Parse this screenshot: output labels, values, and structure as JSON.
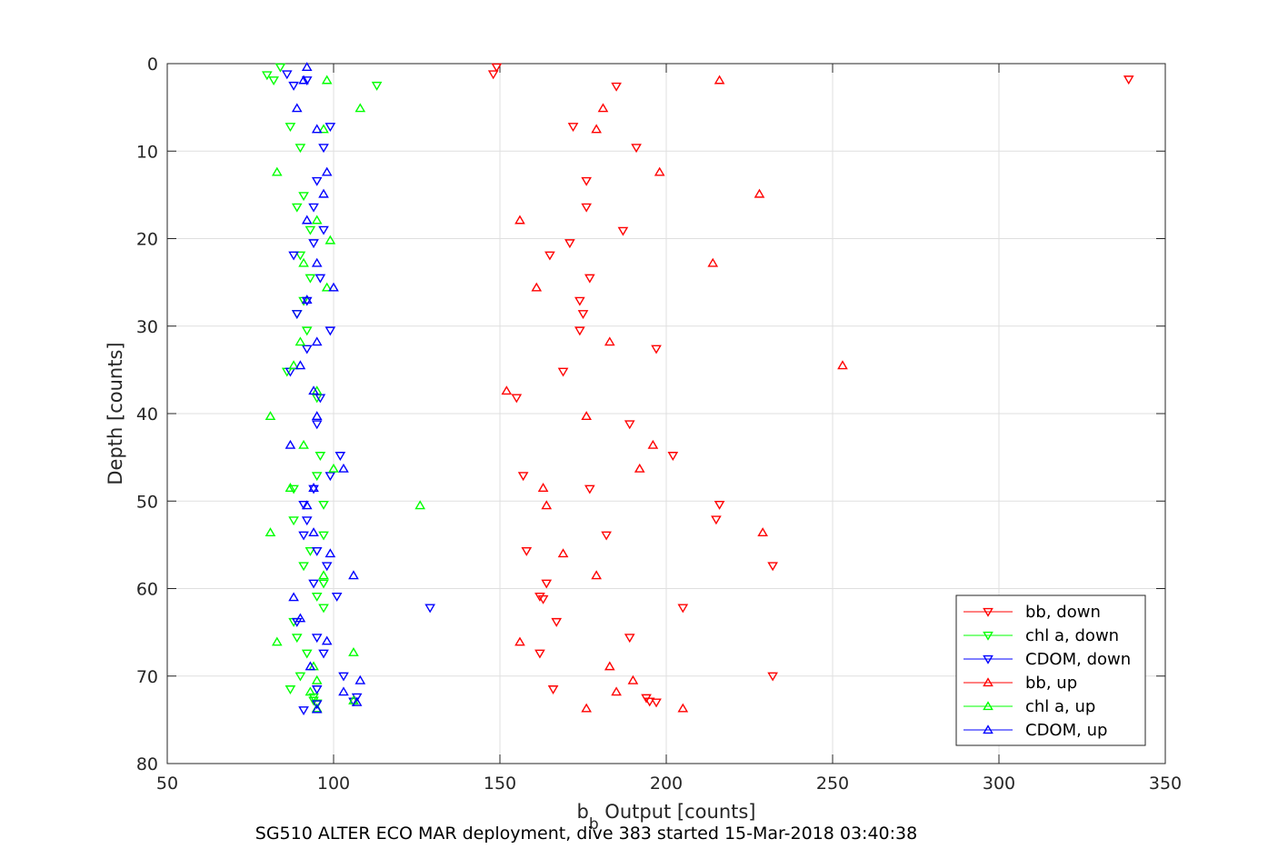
{
  "chart_data": {
    "type": "scatter",
    "title": "",
    "caption": "SG510 ALTER ECO MAR deployment, dive 383 started 15-Mar-2018 03:40:38",
    "xlabel_main": "b",
    "xlabel_sub": "b",
    "xlabel_rest": " Output [counts]",
    "ylabel": "Depth [counts]",
    "xlim": [
      50,
      350
    ],
    "ylim": [
      0,
      80
    ],
    "y_reversed": true,
    "grid": true,
    "legend_position": "bottom-right",
    "xticks": [
      "50",
      "100",
      "150",
      "200",
      "250",
      "300",
      "350"
    ],
    "yticks": [
      "0",
      "10",
      "20",
      "30",
      "40",
      "50",
      "60",
      "70",
      "80"
    ],
    "series": [
      {
        "name": "bb, down",
        "color": "#ff0000",
        "marker": "triangle-down",
        "points": [
          [
            149,
            0.4
          ],
          [
            148,
            1.2
          ],
          [
            339,
            1.8
          ],
          [
            185,
            2.6
          ],
          [
            172,
            7.2
          ],
          [
            191,
            9.6
          ],
          [
            176,
            13.4
          ],
          [
            176,
            16.4
          ],
          [
            187,
            19.1
          ],
          [
            171,
            20.5
          ],
          [
            165,
            21.9
          ],
          [
            177,
            24.5
          ],
          [
            174,
            27.1
          ],
          [
            175,
            28.6
          ],
          [
            174,
            30.5
          ],
          [
            197,
            32.6
          ],
          [
            169,
            35.2
          ],
          [
            155,
            38.2
          ],
          [
            189,
            41.2
          ],
          [
            202,
            44.8
          ],
          [
            157,
            47.1
          ],
          [
            177,
            48.6
          ],
          [
            216,
            50.4
          ],
          [
            215,
            52.1
          ],
          [
            182,
            53.9
          ],
          [
            158,
            55.7
          ],
          [
            232,
            57.4
          ],
          [
            164,
            59.4
          ],
          [
            162,
            60.9
          ],
          [
            163,
            61.2
          ],
          [
            205,
            62.2
          ],
          [
            167,
            63.8
          ],
          [
            189,
            65.6
          ],
          [
            162,
            67.4
          ],
          [
            232,
            70.0
          ],
          [
            166,
            71.5
          ],
          [
            194,
            72.5
          ],
          [
            195,
            72.9
          ],
          [
            197,
            73.0
          ]
        ]
      },
      {
        "name": "chl a, down",
        "color": "#00ff00",
        "marker": "triangle-down",
        "points": [
          [
            84,
            0.4
          ],
          [
            80,
            1.3
          ],
          [
            82,
            1.9
          ],
          [
            113,
            2.5
          ],
          [
            87,
            7.2
          ],
          [
            90,
            9.6
          ],
          [
            91,
            15.1
          ],
          [
            89,
            16.4
          ],
          [
            93,
            19.0
          ],
          [
            90,
            21.9
          ],
          [
            93,
            24.5
          ],
          [
            91,
            27.1
          ],
          [
            89,
            28.6
          ],
          [
            92,
            30.5
          ],
          [
            86,
            35.2
          ],
          [
            95,
            38.2
          ],
          [
            96,
            44.8
          ],
          [
            95,
            47.1
          ],
          [
            88,
            48.6
          ],
          [
            97,
            50.4
          ],
          [
            88,
            52.2
          ],
          [
            97,
            53.9
          ],
          [
            93,
            55.7
          ],
          [
            91,
            57.4
          ],
          [
            97,
            59.4
          ],
          [
            95,
            60.9
          ],
          [
            97,
            62.2
          ],
          [
            88,
            63.8
          ],
          [
            89,
            65.6
          ],
          [
            92,
            67.4
          ],
          [
            90,
            70.0
          ],
          [
            87,
            71.5
          ],
          [
            94,
            72.4
          ],
          [
            94,
            72.8
          ],
          [
            95,
            73.1
          ]
        ]
      },
      {
        "name": "CDOM, down",
        "color": "#0000ff",
        "marker": "triangle-down",
        "points": [
          [
            86,
            1.2
          ],
          [
            92,
            1.9
          ],
          [
            88,
            2.5
          ],
          [
            99,
            7.2
          ],
          [
            97,
            9.6
          ],
          [
            95,
            13.4
          ],
          [
            94,
            16.4
          ],
          [
            97,
            19.0
          ],
          [
            94,
            20.5
          ],
          [
            88,
            21.9
          ],
          [
            96,
            24.5
          ],
          [
            92,
            27.1
          ],
          [
            89,
            28.6
          ],
          [
            99,
            30.5
          ],
          [
            92,
            32.6
          ],
          [
            87,
            35.2
          ],
          [
            96,
            38.2
          ],
          [
            95,
            41.2
          ],
          [
            102,
            44.8
          ],
          [
            99,
            47.1
          ],
          [
            94,
            48.6
          ],
          [
            91,
            50.4
          ],
          [
            92,
            52.2
          ],
          [
            91,
            53.9
          ],
          [
            95,
            55.7
          ],
          [
            98,
            57.4
          ],
          [
            94,
            59.4
          ],
          [
            101,
            60.9
          ],
          [
            129,
            62.2
          ],
          [
            89,
            63.8
          ],
          [
            95,
            65.6
          ],
          [
            97,
            67.4
          ],
          [
            103,
            70.0
          ],
          [
            95,
            71.5
          ],
          [
            107,
            72.4
          ],
          [
            106,
            72.9
          ],
          [
            95,
            73.2
          ],
          [
            91,
            73.9
          ]
        ]
      },
      {
        "name": "bb, up",
        "color": "#ff0000",
        "marker": "triangle-up",
        "points": [
          [
            216,
            1.9
          ],
          [
            181,
            5.1
          ],
          [
            179,
            7.5
          ],
          [
            198,
            12.4
          ],
          [
            228,
            14.9
          ],
          [
            156,
            17.9
          ],
          [
            214,
            22.8
          ],
          [
            161,
            25.6
          ],
          [
            183,
            31.8
          ],
          [
            253,
            34.5
          ],
          [
            152,
            37.4
          ],
          [
            176,
            40.3
          ],
          [
            196,
            43.6
          ],
          [
            192,
            46.3
          ],
          [
            163,
            48.5
          ],
          [
            164,
            50.5
          ],
          [
            229,
            53.6
          ],
          [
            169,
            56.0
          ],
          [
            179,
            58.5
          ],
          [
            156,
            66.1
          ],
          [
            183,
            68.9
          ],
          [
            190,
            70.5
          ],
          [
            185,
            71.8
          ],
          [
            205,
            73.7
          ],
          [
            176,
            73.7
          ]
        ]
      },
      {
        "name": "chl a, up",
        "color": "#00ff00",
        "marker": "triangle-up",
        "points": [
          [
            108,
            5.1
          ],
          [
            97,
            7.5
          ],
          [
            98,
            1.9
          ],
          [
            83,
            12.4
          ],
          [
            95,
            17.9
          ],
          [
            99,
            20.2
          ],
          [
            91,
            22.8
          ],
          [
            98,
            25.6
          ],
          [
            90,
            31.8
          ],
          [
            88,
            34.5
          ],
          [
            95,
            37.4
          ],
          [
            81,
            40.3
          ],
          [
            91,
            43.6
          ],
          [
            100,
            46.3
          ],
          [
            87,
            48.5
          ],
          [
            126,
            50.5
          ],
          [
            81,
            53.6
          ],
          [
            97,
            58.5
          ],
          [
            83,
            66.1
          ],
          [
            106,
            67.3
          ],
          [
            94,
            68.9
          ],
          [
            95,
            70.5
          ],
          [
            93,
            71.8
          ],
          [
            106,
            72.8
          ],
          [
            95,
            73.7
          ]
        ]
      },
      {
        "name": "CDOM, up",
        "color": "#0000ff",
        "marker": "triangle-up",
        "points": [
          [
            92,
            0.4
          ],
          [
            91,
            1.9
          ],
          [
            89,
            5.1
          ],
          [
            95,
            7.5
          ],
          [
            98,
            12.4
          ],
          [
            97,
            14.9
          ],
          [
            92,
            17.9
          ],
          [
            100,
            25.6
          ],
          [
            95,
            22.8
          ],
          [
            92,
            27.0
          ],
          [
            95,
            31.8
          ],
          [
            90,
            34.5
          ],
          [
            94,
            37.4
          ],
          [
            95,
            40.3
          ],
          [
            87,
            43.6
          ],
          [
            103,
            46.3
          ],
          [
            94,
            48.5
          ],
          [
            92,
            50.5
          ],
          [
            94,
            53.6
          ],
          [
            99,
            56.0
          ],
          [
            106,
            58.5
          ],
          [
            88,
            61.0
          ],
          [
            90,
            63.4
          ],
          [
            98,
            66.0
          ],
          [
            93,
            68.9
          ],
          [
            108,
            70.5
          ],
          [
            103,
            71.8
          ],
          [
            107,
            73.0
          ],
          [
            95,
            73.8
          ]
        ]
      }
    ]
  }
}
